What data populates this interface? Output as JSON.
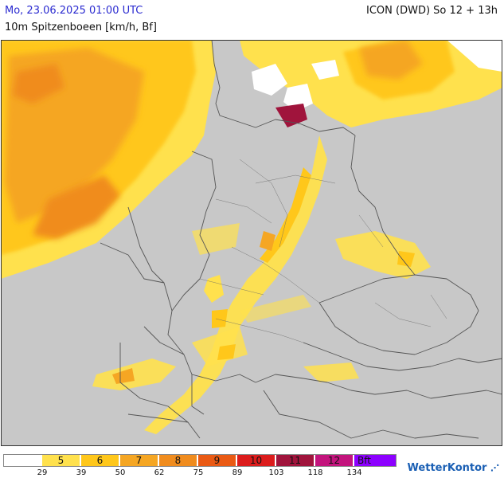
{
  "header": {
    "datetime": "Mo, 23.06.2025 01:00 UTC",
    "subtitle": "10m Spitzenboeen [km/h, Bf]",
    "model_run": "ICON (DWD) So 12 + 13h"
  },
  "map": {
    "colors": {
      "land_gray": "#c8c8c8",
      "border": "#555555",
      "snow_white": "#ffffff",
      "bf5": "#ffe14d",
      "bf6": "#ffc71a",
      "bf7": "#f5a623",
      "bf8": "#f08c1e",
      "bf9": "#ea5a14",
      "bf10": "#dc1c1c",
      "bf11": "#a0143c",
      "bf12": "#c3147d",
      "bf_max": "#8c00ff"
    }
  },
  "legend": {
    "labels": [
      "",
      "5",
      "6",
      "7",
      "8",
      "9",
      "10",
      "11",
      "12",
      "Bft"
    ],
    "colors": [
      "#ffffff",
      "#ffe14d",
      "#ffc71a",
      "#f5a623",
      "#f08c1e",
      "#ea5a14",
      "#dc1c1c",
      "#a0143c",
      "#c3147d",
      "#8c00ff"
    ],
    "ticks": [
      "29",
      "39",
      "50",
      "62",
      "75",
      "89",
      "103",
      "118",
      "134"
    ]
  },
  "brand": {
    "name": "WetterKontor"
  }
}
